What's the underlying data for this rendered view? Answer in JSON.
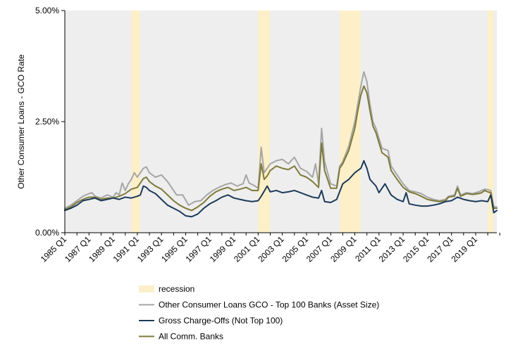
{
  "chart_data": {
    "type": "line",
    "title": "",
    "xlabel": "",
    "ylabel": "Other Consumer Loans - GCO Rate",
    "ylim": [
      0,
      5
    ],
    "y_ticks": [
      "0.00%",
      "2.50%",
      "5.00%"
    ],
    "x_ticks": [
      "1985 Q1",
      "1987 Q1",
      "1989 Q1",
      "1991 Q1",
      "1993 Q1",
      "1995 Q1",
      "1997 Q1",
      "1999 Q1",
      "2001 Q1",
      "2003 Q1",
      "2005 Q1",
      "2007 Q1",
      "2009 Q1",
      "2011 Q1",
      "2013 Q1",
      "2015 Q1",
      "2017 Q1",
      "2019 Q1"
    ],
    "x_range": [
      "1985 Q1",
      "2020 Q4"
    ],
    "grid": false,
    "plot_background": "#eeeeee",
    "recession_color": "#fdf0c8",
    "recessions": [
      {
        "start": "1990 Q3",
        "end": "1991 Q1"
      },
      {
        "start": "2001 Q1",
        "end": "2001 Q4"
      },
      {
        "start": "2007 Q4",
        "end": "2009 Q2"
      },
      {
        "start": "2020 Q1",
        "end": "2020 Q2"
      }
    ],
    "legend_position": "bottom",
    "legend": [
      {
        "label": "recession",
        "kind": "area",
        "color": "#fdf0c8"
      },
      {
        "label": "Other Consumer Loans GCO - Top 100 Banks (Asset Size)",
        "kind": "line",
        "color": "#a6a6a6"
      },
      {
        "label": "Gross Charge-Offs (Not Top 100)",
        "kind": "line",
        "color": "#1c3a5a"
      },
      {
        "label": "All Comm. Banks",
        "kind": "line",
        "color": "#7e7a3a"
      }
    ],
    "series": [
      {
        "name": "Other Consumer Loans GCO - Top 100 Banks (Asset Size)",
        "color": "#a6a6a6",
        "points": [
          [
            "1985 Q1",
            0.55
          ],
          [
            "1985 Q3",
            0.62
          ],
          [
            "1986 Q1",
            0.72
          ],
          [
            "1986 Q3",
            0.82
          ],
          [
            "1987 Q1",
            0.88
          ],
          [
            "1987 Q2",
            0.9
          ],
          [
            "1987 Q3",
            0.82
          ],
          [
            "1988 Q1",
            0.78
          ],
          [
            "1988 Q3",
            0.85
          ],
          [
            "1989 Q1",
            0.8
          ],
          [
            "1989 Q2",
            0.9
          ],
          [
            "1989 Q3",
            0.85
          ],
          [
            "1989 Q4",
            1.12
          ],
          [
            "1990 Q1",
            0.95
          ],
          [
            "1990 Q2",
            1.1
          ],
          [
            "1990 Q3",
            1.2
          ],
          [
            "1990 Q4",
            1.35
          ],
          [
            "1991 Q1",
            1.25
          ],
          [
            "1991 Q3",
            1.45
          ],
          [
            "1991 Q4",
            1.48
          ],
          [
            "1992 Q1",
            1.35
          ],
          [
            "1992 Q3",
            1.25
          ],
          [
            "1993 Q1",
            1.3
          ],
          [
            "1993 Q3",
            1.15
          ],
          [
            "1994 Q1",
            0.95
          ],
          [
            "1994 Q2",
            0.85
          ],
          [
            "1994 Q4",
            0.85
          ],
          [
            "1995 Q2",
            0.62
          ],
          [
            "1995 Q4",
            0.7
          ],
          [
            "1996 Q2",
            0.72
          ],
          [
            "1996 Q4",
            0.85
          ],
          [
            "1997 Q2",
            0.95
          ],
          [
            "1997 Q4",
            1.02
          ],
          [
            "1998 Q2",
            1.08
          ],
          [
            "1998 Q4",
            1.12
          ],
          [
            "1999 Q2",
            1.05
          ],
          [
            "1999 Q4",
            1.1
          ],
          [
            "2000 Q1",
            1.3
          ],
          [
            "2000 Q2",
            1.12
          ],
          [
            "2000 Q4",
            1.05
          ],
          [
            "2001 Q1",
            1.0
          ],
          [
            "2001 Q2",
            1.92
          ],
          [
            "2001 Q3",
            1.35
          ],
          [
            "2001 Q4",
            1.45
          ],
          [
            "2002 Q1",
            1.55
          ],
          [
            "2002 Q3",
            1.62
          ],
          [
            "2003 Q1",
            1.65
          ],
          [
            "2003 Q3",
            1.55
          ],
          [
            "2004 Q1",
            1.7
          ],
          [
            "2004 Q3",
            1.45
          ],
          [
            "2005 Q1",
            1.38
          ],
          [
            "2005 Q3",
            1.25
          ],
          [
            "2005 Q4",
            1.55
          ],
          [
            "2006 Q1",
            1.1
          ],
          [
            "2006 Q2",
            2.35
          ],
          [
            "2006 Q3",
            1.6
          ],
          [
            "2007 Q1",
            1.1
          ],
          [
            "2007 Q3",
            1.05
          ],
          [
            "2007 Q4",
            1.5
          ],
          [
            "2008 Q1",
            1.6
          ],
          [
            "2008 Q3",
            1.95
          ],
          [
            "2009 Q1",
            2.5
          ],
          [
            "2009 Q2",
            2.9
          ],
          [
            "2009 Q3",
            3.3
          ],
          [
            "2009 Q4",
            3.62
          ],
          [
            "2010 Q1",
            3.4
          ],
          [
            "2010 Q2",
            2.9
          ],
          [
            "2010 Q3",
            2.5
          ],
          [
            "2010 Q4",
            2.35
          ],
          [
            "2011 Q2",
            1.9
          ],
          [
            "2011 Q4",
            1.85
          ],
          [
            "2012 Q1",
            1.5
          ],
          [
            "2012 Q3",
            1.3
          ],
          [
            "2013 Q1",
            1.1
          ],
          [
            "2013 Q3",
            0.95
          ],
          [
            "2014 Q1",
            0.92
          ],
          [
            "2014 Q3",
            0.88
          ],
          [
            "2015 Q1",
            0.8
          ],
          [
            "2015 Q3",
            0.75
          ],
          [
            "2016 Q1",
            0.72
          ],
          [
            "2016 Q3",
            0.75
          ],
          [
            "2016 Q4",
            0.82
          ],
          [
            "2017 Q2",
            0.85
          ],
          [
            "2017 Q3",
            1.05
          ],
          [
            "2017 Q4",
            0.85
          ],
          [
            "2018 Q2",
            0.9
          ],
          [
            "2018 Q4",
            0.88
          ],
          [
            "2019 Q2",
            0.92
          ],
          [
            "2019 Q3",
            0.95
          ],
          [
            "2019 Q4",
            0.98
          ],
          [
            "2020 Q1",
            0.97
          ],
          [
            "2020 Q2",
            0.95
          ],
          [
            "2020 Q3",
            0.58
          ],
          [
            "2020 Q4",
            0.58
          ]
        ]
      },
      {
        "name": "Gross Charge-Offs (Not Top 100)",
        "color": "#1c3a5a",
        "points": [
          [
            "1985 Q1",
            0.5
          ],
          [
            "1985 Q3",
            0.55
          ],
          [
            "1986 Q1",
            0.62
          ],
          [
            "1986 Q3",
            0.72
          ],
          [
            "1987 Q1",
            0.75
          ],
          [
            "1987 Q3",
            0.78
          ],
          [
            "1988 Q1",
            0.72
          ],
          [
            "1988 Q3",
            0.75
          ],
          [
            "1989 Q1",
            0.78
          ],
          [
            "1989 Q3",
            0.75
          ],
          [
            "1990 Q1",
            0.8
          ],
          [
            "1990 Q3",
            0.78
          ],
          [
            "1991 Q1",
            0.82
          ],
          [
            "1991 Q2",
            0.85
          ],
          [
            "1991 Q3",
            1.05
          ],
          [
            "1991 Q4",
            1.02
          ],
          [
            "1992 Q1",
            0.95
          ],
          [
            "1992 Q3",
            0.88
          ],
          [
            "1993 Q1",
            0.75
          ],
          [
            "1993 Q3",
            0.62
          ],
          [
            "1994 Q1",
            0.55
          ],
          [
            "1994 Q3",
            0.48
          ],
          [
            "1995 Q1",
            0.38
          ],
          [
            "1995 Q3",
            0.36
          ],
          [
            "1996 Q1",
            0.42
          ],
          [
            "1996 Q3",
            0.55
          ],
          [
            "1997 Q1",
            0.65
          ],
          [
            "1997 Q3",
            0.72
          ],
          [
            "1998 Q1",
            0.8
          ],
          [
            "1998 Q3",
            0.85
          ],
          [
            "1999 Q1",
            0.78
          ],
          [
            "1999 Q3",
            0.75
          ],
          [
            "2000 Q1",
            0.72
          ],
          [
            "2000 Q3",
            0.7
          ],
          [
            "2001 Q1",
            0.72
          ],
          [
            "2001 Q2",
            0.82
          ],
          [
            "2001 Q4",
            1.05
          ],
          [
            "2002 Q1",
            0.92
          ],
          [
            "2002 Q3",
            0.95
          ],
          [
            "2003 Q1",
            0.9
          ],
          [
            "2003 Q3",
            0.92
          ],
          [
            "2004 Q1",
            0.95
          ],
          [
            "2004 Q3",
            0.9
          ],
          [
            "2005 Q1",
            0.85
          ],
          [
            "2005 Q3",
            0.8
          ],
          [
            "2006 Q1",
            0.78
          ],
          [
            "2006 Q2",
            0.95
          ],
          [
            "2006 Q3",
            0.7
          ],
          [
            "2007 Q1",
            0.68
          ],
          [
            "2007 Q3",
            0.75
          ],
          [
            "2008 Q1",
            1.1
          ],
          [
            "2008 Q3",
            1.2
          ],
          [
            "2009 Q1",
            1.35
          ],
          [
            "2009 Q3",
            1.45
          ],
          [
            "2009 Q4",
            1.62
          ],
          [
            "2010 Q1",
            1.45
          ],
          [
            "2010 Q2",
            1.2
          ],
          [
            "2010 Q4",
            1.05
          ],
          [
            "2011 Q1",
            0.9
          ],
          [
            "2011 Q3",
            1.1
          ],
          [
            "2012 Q1",
            0.85
          ],
          [
            "2012 Q3",
            0.75
          ],
          [
            "2013 Q1",
            0.7
          ],
          [
            "2013 Q2",
            0.9
          ],
          [
            "2013 Q3",
            0.65
          ],
          [
            "2014 Q1",
            0.62
          ],
          [
            "2014 Q3",
            0.6
          ],
          [
            "2015 Q1",
            0.6
          ],
          [
            "2015 Q3",
            0.62
          ],
          [
            "2016 Q1",
            0.65
          ],
          [
            "2016 Q3",
            0.7
          ],
          [
            "2017 Q1",
            0.72
          ],
          [
            "2017 Q3",
            0.8
          ],
          [
            "2018 Q1",
            0.75
          ],
          [
            "2018 Q3",
            0.72
          ],
          [
            "2019 Q1",
            0.7
          ],
          [
            "2019 Q3",
            0.72
          ],
          [
            "2020 Q1",
            0.7
          ],
          [
            "2020 Q2",
            0.85
          ],
          [
            "2020 Q3",
            0.45
          ],
          [
            "2020 Q4",
            0.5
          ]
        ]
      },
      {
        "name": "All Comm. Banks",
        "color": "#7e7a3a",
        "points": [
          [
            "1985 Q1",
            0.52
          ],
          [
            "1985 Q3",
            0.58
          ],
          [
            "1986 Q1",
            0.68
          ],
          [
            "1986 Q3",
            0.75
          ],
          [
            "1987 Q1",
            0.8
          ],
          [
            "1987 Q3",
            0.8
          ],
          [
            "1988 Q1",
            0.75
          ],
          [
            "1988 Q3",
            0.78
          ],
          [
            "1989 Q1",
            0.78
          ],
          [
            "1989 Q3",
            0.82
          ],
          [
            "1990 Q1",
            0.88
          ],
          [
            "1990 Q3",
            0.98
          ],
          [
            "1991 Q1",
            1.02
          ],
          [
            "1991 Q3",
            1.22
          ],
          [
            "1991 Q4",
            1.25
          ],
          [
            "1992 Q1",
            1.15
          ],
          [
            "1992 Q3",
            1.05
          ],
          [
            "1993 Q1",
            0.98
          ],
          [
            "1993 Q3",
            0.85
          ],
          [
            "1994 Q1",
            0.72
          ],
          [
            "1994 Q3",
            0.62
          ],
          [
            "1995 Q1",
            0.55
          ],
          [
            "1995 Q3",
            0.5
          ],
          [
            "1996 Q1",
            0.58
          ],
          [
            "1996 Q3",
            0.68
          ],
          [
            "1997 Q1",
            0.82
          ],
          [
            "1997 Q3",
            0.92
          ],
          [
            "1998 Q1",
            0.98
          ],
          [
            "1998 Q3",
            1.02
          ],
          [
            "1999 Q1",
            0.95
          ],
          [
            "1999 Q3",
            0.98
          ],
          [
            "2000 Q1",
            1.02
          ],
          [
            "2000 Q3",
            0.95
          ],
          [
            "2001 Q1",
            0.95
          ],
          [
            "2001 Q2",
            1.55
          ],
          [
            "2001 Q3",
            1.2
          ],
          [
            "2001 Q4",
            1.28
          ],
          [
            "2002 Q1",
            1.4
          ],
          [
            "2002 Q3",
            1.5
          ],
          [
            "2003 Q1",
            1.45
          ],
          [
            "2003 Q3",
            1.42
          ],
          [
            "2004 Q1",
            1.5
          ],
          [
            "2004 Q3",
            1.3
          ],
          [
            "2005 Q1",
            1.25
          ],
          [
            "2005 Q3",
            1.15
          ],
          [
            "2006 Q1",
            1.02
          ],
          [
            "2006 Q2",
            2.02
          ],
          [
            "2006 Q3",
            1.4
          ],
          [
            "2007 Q1",
            1.0
          ],
          [
            "2007 Q3",
            1.0
          ],
          [
            "2007 Q4",
            1.45
          ],
          [
            "2008 Q1",
            1.55
          ],
          [
            "2008 Q3",
            1.85
          ],
          [
            "2009 Q1",
            2.35
          ],
          [
            "2009 Q2",
            2.75
          ],
          [
            "2009 Q3",
            3.1
          ],
          [
            "2009 Q4",
            3.3
          ],
          [
            "2010 Q1",
            3.15
          ],
          [
            "2010 Q2",
            2.75
          ],
          [
            "2010 Q3",
            2.4
          ],
          [
            "2010 Q4",
            2.25
          ],
          [
            "2011 Q2",
            1.8
          ],
          [
            "2011 Q4",
            1.7
          ],
          [
            "2012 Q1",
            1.4
          ],
          [
            "2012 Q3",
            1.2
          ],
          [
            "2013 Q1",
            1.02
          ],
          [
            "2013 Q3",
            0.92
          ],
          [
            "2014 Q1",
            0.88
          ],
          [
            "2014 Q3",
            0.82
          ],
          [
            "2015 Q1",
            0.75
          ],
          [
            "2015 Q3",
            0.72
          ],
          [
            "2016 Q1",
            0.7
          ],
          [
            "2016 Q3",
            0.72
          ],
          [
            "2016 Q4",
            0.8
          ],
          [
            "2017 Q2",
            0.82
          ],
          [
            "2017 Q3",
            1.0
          ],
          [
            "2017 Q4",
            0.82
          ],
          [
            "2018 Q2",
            0.88
          ],
          [
            "2018 Q4",
            0.86
          ],
          [
            "2019 Q2",
            0.88
          ],
          [
            "2019 Q3",
            0.9
          ],
          [
            "2019 Q4",
            0.95
          ],
          [
            "2020 Q1",
            0.92
          ],
          [
            "2020 Q2",
            0.9
          ],
          [
            "2020 Q3",
            0.55
          ],
          [
            "2020 Q4",
            0.55
          ]
        ]
      }
    ]
  }
}
